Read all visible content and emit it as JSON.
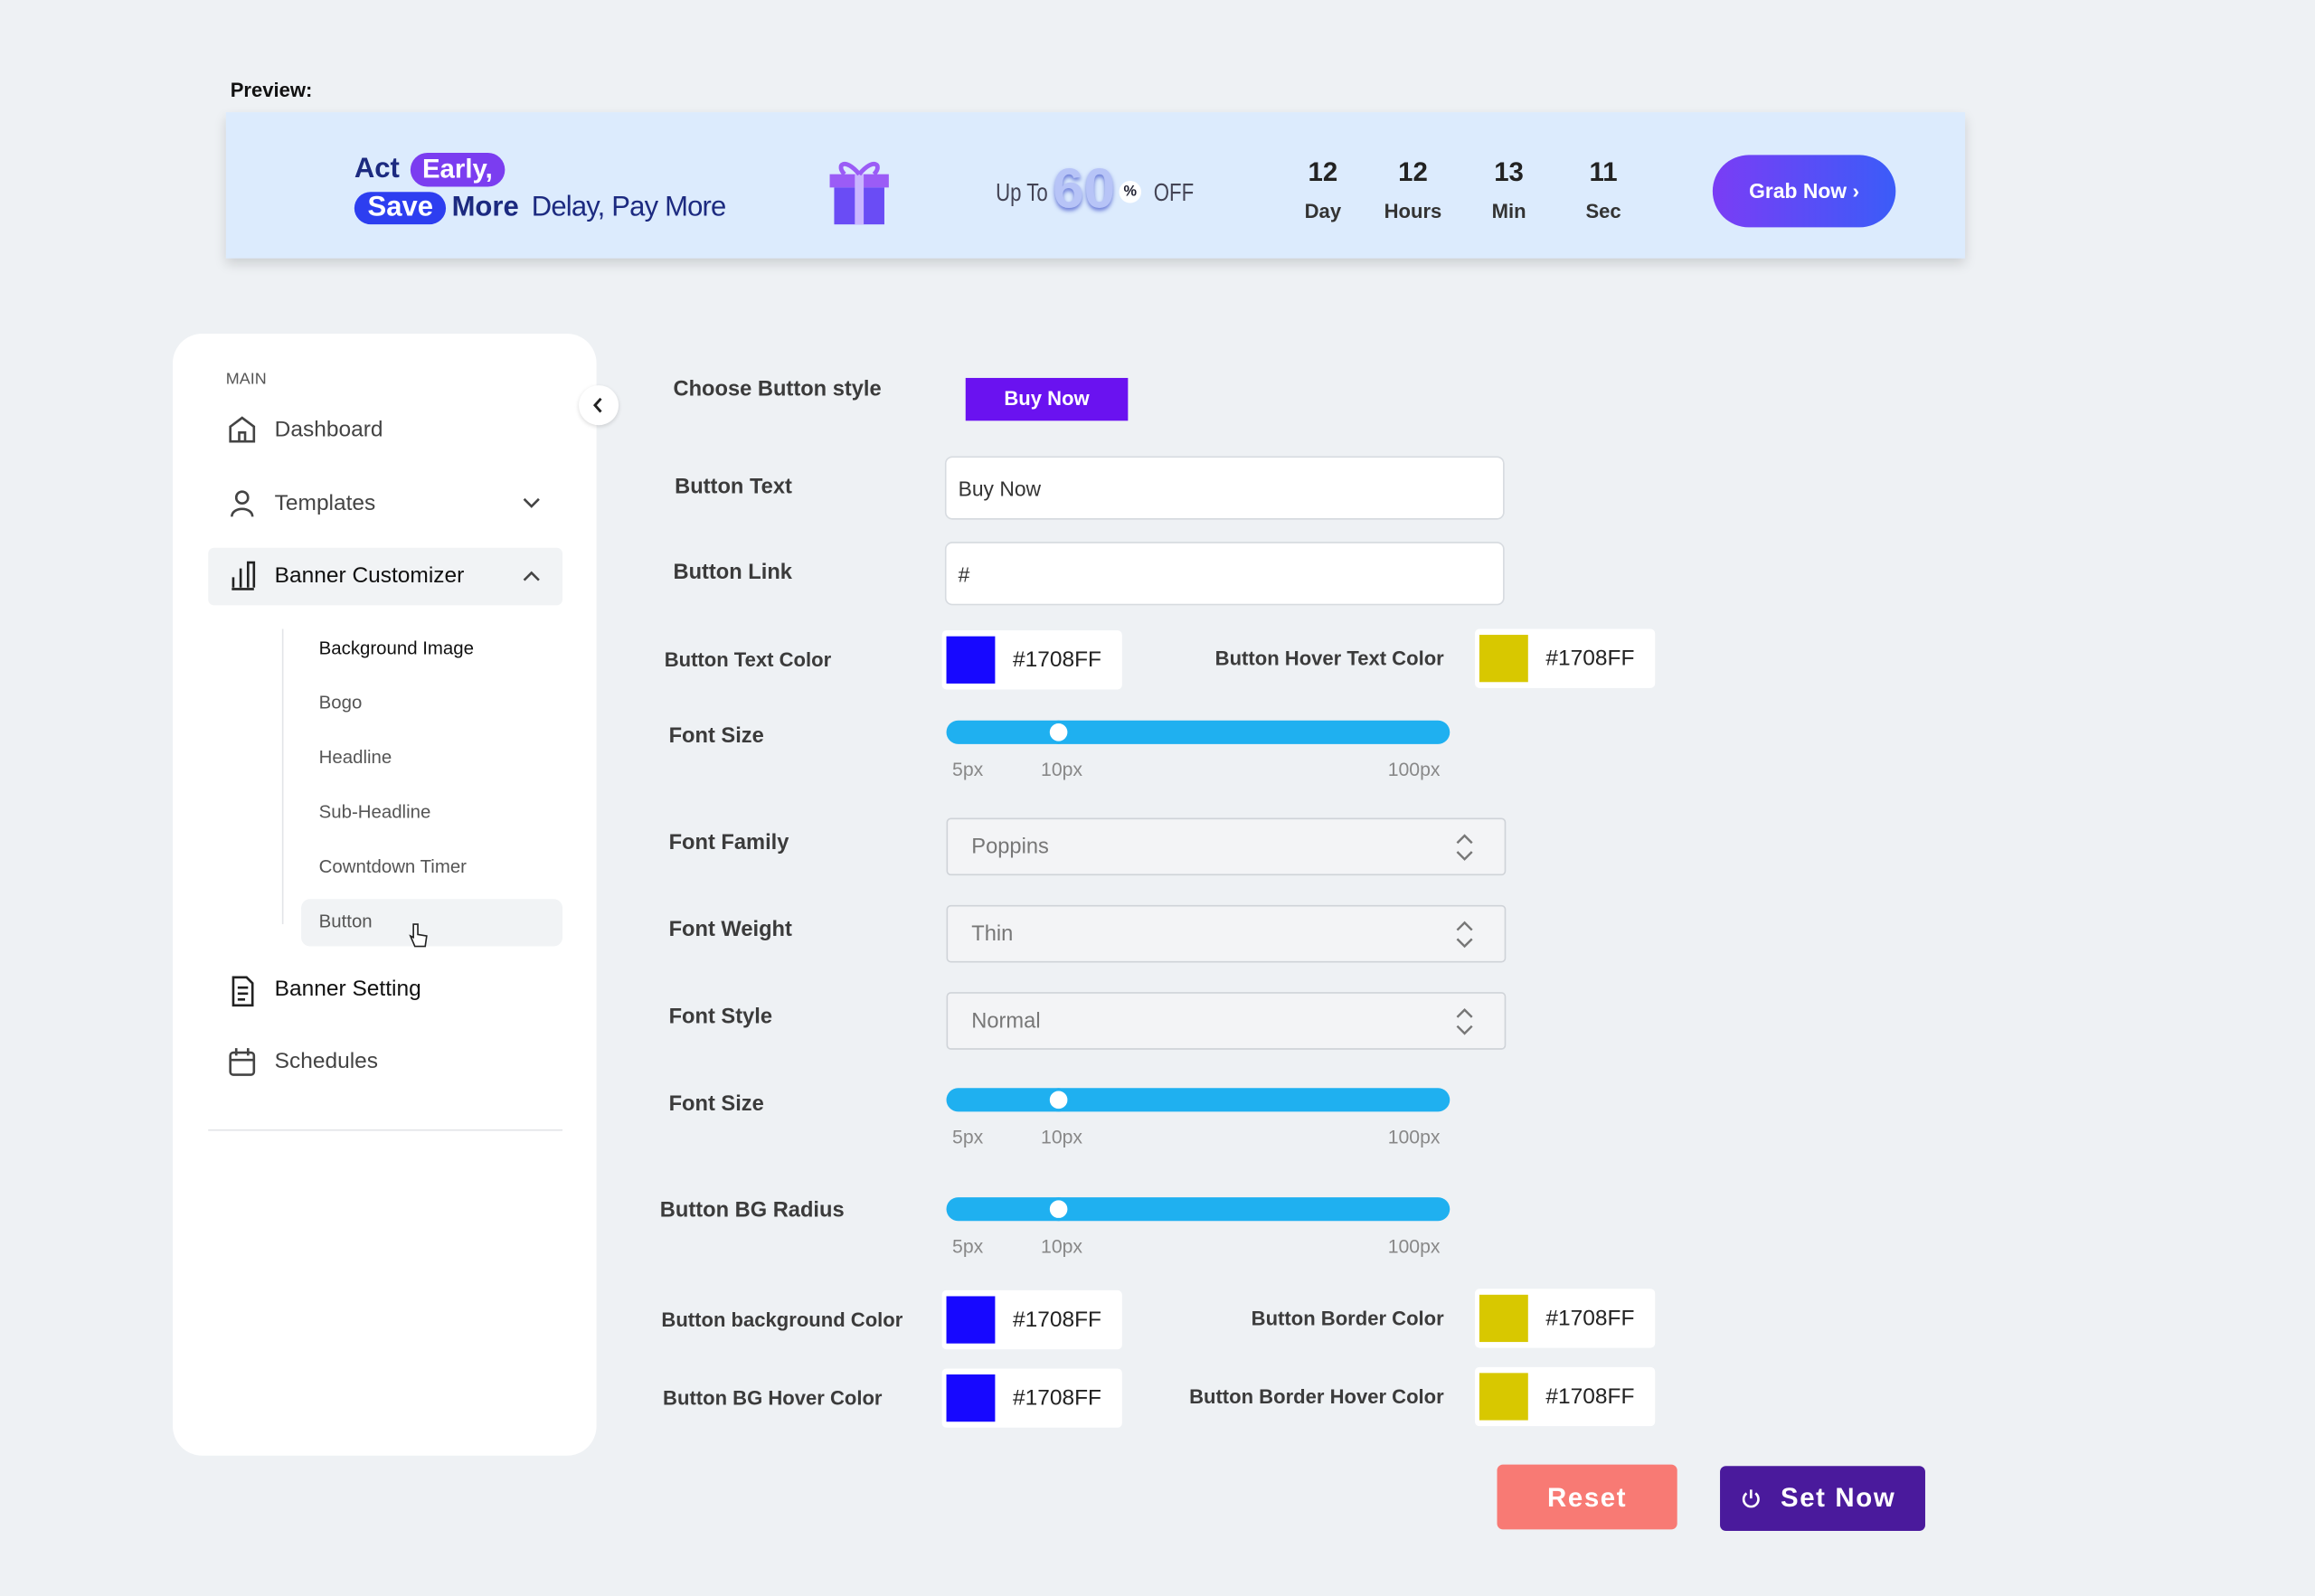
{
  "preview": {
    "label": "Preview:",
    "banner": {
      "act": "Act",
      "early": "Early,",
      "save": "Save",
      "more": "More",
      "tagline": "Delay, Pay More",
      "up_to": "Up To",
      "discount": 60,
      "percent": "%",
      "off": "OFF",
      "countdown": [
        {
          "value": 12,
          "unit": "Day"
        },
        {
          "value": 12,
          "unit": "Hours"
        },
        {
          "value": 13,
          "unit": "Min"
        },
        {
          "value": 11,
          "unit": "Sec"
        }
      ],
      "button": "Grab Now ›"
    }
  },
  "sidebar": {
    "section": "MAIN",
    "items": [
      "Dashboard",
      "Templates",
      "Banner Customizer",
      "Banner Setting",
      "Schedules"
    ],
    "submenu": [
      "Background Image",
      "Bogo",
      "Headline",
      "Sub-Headline",
      "Cowntdown Timer",
      "Button"
    ]
  },
  "form": {
    "button_style": {
      "label": "Choose Button style",
      "sample": "Buy Now"
    },
    "button_text": {
      "label": "Button Text",
      "value": "Buy Now"
    },
    "button_link": {
      "label": "Button Link",
      "value": "#"
    },
    "text_color": {
      "label": "Button Text Color",
      "value": "#1708FF"
    },
    "hover_text_color": {
      "label": "Button Hover Text Color",
      "value": "#1708FF"
    },
    "font_size": {
      "label": "Font Size",
      "marks": [
        "5px",
        "10px",
        "100px"
      ]
    },
    "font_family": {
      "label": "Font Family",
      "value": "Poppins"
    },
    "font_weight": {
      "label": "Font Weight",
      "value": "Thin"
    },
    "font_style": {
      "label": "Font Style",
      "value": "Normal"
    },
    "font_size_2": {
      "label": "Font Size",
      "marks": [
        "5px",
        "10px",
        "100px"
      ]
    },
    "bg_radius": {
      "label": "Button BG Radius",
      "marks": [
        "5px",
        "10px",
        "100px"
      ]
    },
    "bg_color": {
      "label": "Button background Color",
      "value": "#1708FF"
    },
    "border_color": {
      "label": "Button Border Color",
      "value": "#1708FF"
    },
    "bg_hover_color": {
      "label": "Button BG Hover Color",
      "value": "#1708FF"
    },
    "border_hover_color": {
      "label": "Button Border Hover Color",
      "value": "#1708FF"
    }
  },
  "actions": {
    "reset": "Reset",
    "set_now": "Set Now"
  }
}
